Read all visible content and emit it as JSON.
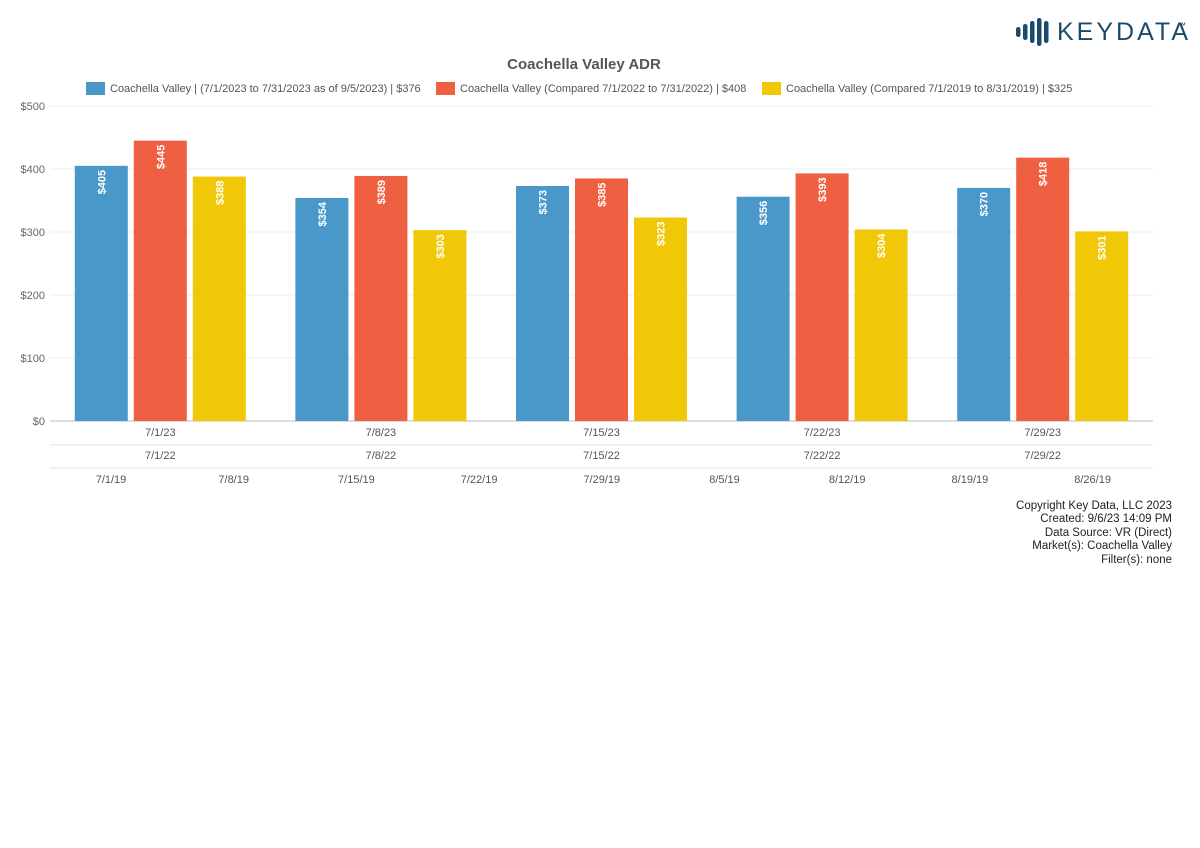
{
  "logo": {
    "text": "KEYDATA",
    "tm": "™",
    "color": "#1b4a6b"
  },
  "footer": {
    "copyright": "Copyright Key Data, LLC 2023",
    "created": "Created: 9/6/23 14:09 PM",
    "source": "Data Source: VR (Direct)",
    "markets": "Market(s):  Coachella Valley",
    "filters": "Filter(s): none"
  },
  "chart_data": {
    "type": "bar",
    "title": "Coachella Valley ADR",
    "ylim": [
      0,
      500
    ],
    "yticks": [
      0,
      100,
      200,
      300,
      400,
      500
    ],
    "yticklabels": [
      "$0",
      "$100",
      "$200",
      "$300",
      "$400",
      "$500"
    ],
    "grid": true,
    "legend": "top",
    "categories": [
      "7/1/23",
      "7/8/23",
      "7/15/23",
      "7/22/23",
      "7/29/23"
    ],
    "categories_2022": [
      "7/1/22",
      "7/8/22",
      "7/15/22",
      "7/22/22",
      "7/29/22"
    ],
    "axis_2019": [
      "7/1/19",
      "7/8/19",
      "7/15/19",
      "7/22/19",
      "7/29/19",
      "8/5/19",
      "8/12/19",
      "8/19/19",
      "8/26/19"
    ],
    "series": [
      {
        "name": "Coachella Valley | (7/1/2023 to 7/31/2023 as of 9/5/2023) | $376",
        "color": "#4a98c9",
        "values": [
          405,
          354,
          373,
          356,
          370
        ],
        "labels": [
          "$405",
          "$354",
          "$373",
          "$356",
          "$370"
        ]
      },
      {
        "name": "Coachella Valley (Compared 7/1/2022 to 7/31/2022) | $408",
        "color": "#ef5f41",
        "values": [
          445,
          389,
          385,
          393,
          418
        ],
        "labels": [
          "$445",
          "$389",
          "$385",
          "$393",
          "$418"
        ]
      },
      {
        "name": "Coachella Valley (Compared 7/1/2019 to 8/31/2019) | $325",
        "color": "#f0c808",
        "values": [
          388,
          303,
          323,
          304,
          301
        ],
        "labels": [
          "$388",
          "$303",
          "$323",
          "$304",
          "$301"
        ]
      }
    ]
  }
}
